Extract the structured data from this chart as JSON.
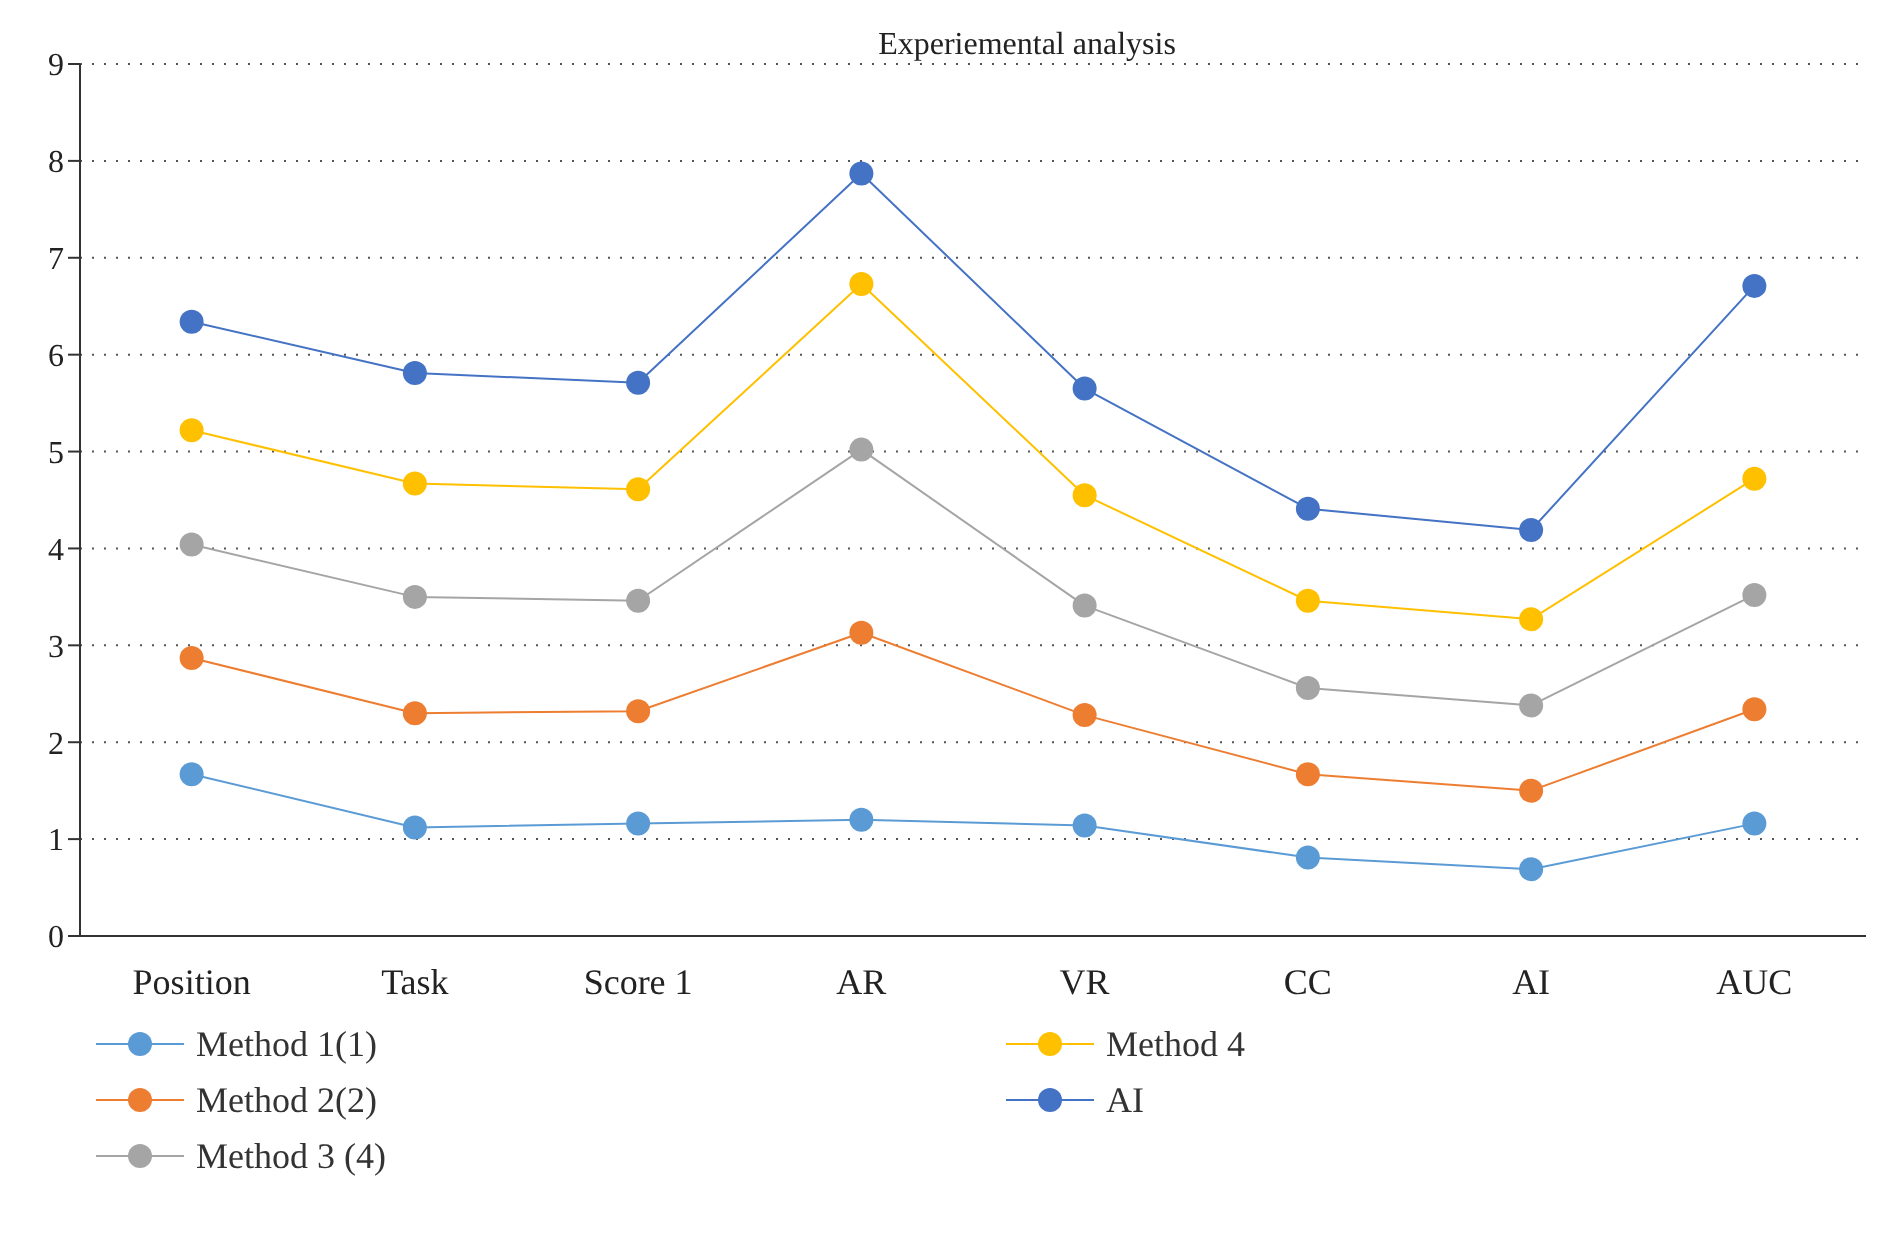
{
  "chart_data": {
    "type": "line",
    "title": "Experiemental analysis",
    "categories": [
      "Position",
      "Task",
      "Score 1",
      "AR",
      "VR",
      "CC",
      "AI",
      "AUC"
    ],
    "series": [
      {
        "name": "Method 1(1)",
        "color": "#5b9bd5",
        "values": [
          1.67,
          1.12,
          1.16,
          1.2,
          1.14,
          0.81,
          0.69,
          1.16
        ]
      },
      {
        "name": "Method 2(2)",
        "color": "#ed7d31",
        "values": [
          2.87,
          2.3,
          2.32,
          3.13,
          2.28,
          1.67,
          1.5,
          2.34
        ]
      },
      {
        "name": "Method 3 (4)",
        "color": "#a5a5a5",
        "values": [
          4.04,
          3.5,
          3.46,
          5.02,
          3.41,
          2.56,
          2.38,
          3.52
        ]
      },
      {
        "name": "Method 4",
        "color": "#ffc000",
        "values": [
          5.22,
          4.67,
          4.61,
          6.73,
          4.55,
          3.46,
          3.27,
          4.72
        ]
      },
      {
        "name": "AI",
        "color": "#4472c4",
        "values": [
          6.34,
          5.81,
          5.71,
          7.87,
          5.65,
          4.41,
          4.19,
          6.71
        ]
      }
    ],
    "ylim": [
      0,
      9
    ],
    "yticks": [
      0,
      1,
      2,
      3,
      4,
      5,
      6,
      7,
      8,
      9
    ],
    "grid": "y",
    "legend": "bottom",
    "marker": "circle",
    "line_style": "solid"
  }
}
